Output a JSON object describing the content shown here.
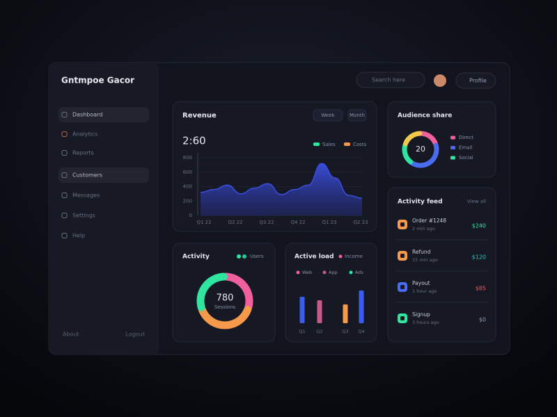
{
  "sidebar": {
    "title": "Gntmpoe Gacor",
    "items": [
      "Dashboard",
      "Analytics",
      "Reports",
      "Customers",
      "Messages",
      "Settings",
      "Help"
    ],
    "footer": [
      "About",
      "Logout"
    ]
  },
  "header": {
    "search": "Search here",
    "profile": "Profile"
  },
  "revenue": {
    "type": "area",
    "title": "Revenue",
    "buttons": [
      "Week",
      "Month"
    ],
    "total": "2:60",
    "legend": [
      {
        "name": "Sales",
        "color": "#2ee6a0"
      },
      {
        "name": "Costs",
        "color": "#f59a4a"
      }
    ],
    "color": "#3b4fe0",
    "values": [
      320,
      360,
      420,
      300,
      380,
      440,
      290,
      360,
      420,
      720,
      520,
      280,
      240
    ],
    "ylim": [
      0,
      800
    ],
    "yticks": [
      0,
      200,
      400,
      600,
      800
    ],
    "x_labels": [
      "Q1 22",
      "Q2 22",
      "Q3 22",
      "Q4 22",
      "Q1 23",
      "Q2 23"
    ]
  },
  "audience": {
    "type": "pie",
    "title": "Audience share",
    "center": "20",
    "segments": [
      {
        "name": "Direct",
        "color": "#f0609e",
        "value": 20
      },
      {
        "name": "Email",
        "color": "#4a6cf0",
        "value": 40
      },
      {
        "name": "Social",
        "color": "#2ee6a0",
        "value": 20
      },
      {
        "color": "#f2c94c",
        "value": 20
      }
    ]
  },
  "activity": {
    "type": "pie",
    "title": "Activity",
    "legend": "Users",
    "center": "780",
    "subtitle": "Sessions",
    "segments": [
      {
        "color": "#f0609e",
        "value": 30
      },
      {
        "color": "#f59a4a",
        "value": 40
      },
      {
        "color": "#2ee6a0",
        "value": 30
      }
    ]
  },
  "load": {
    "type": "bar",
    "title": "Active load",
    "legend_title": "Income",
    "legend": [
      {
        "name": "Web",
        "color": "#f0609e"
      },
      {
        "name": "App",
        "color": "#c85a8a"
      },
      {
        "name": "Ads",
        "color": "#2ee6a0"
      }
    ],
    "categories": [
      "Q1",
      "Q2",
      "Q3",
      "Q4"
    ],
    "values": [
      38,
      33,
      27,
      47
    ],
    "colors": [
      "#3b5cf0",
      "#c85a8a",
      "#f59a4a",
      "#3b5cf0"
    ],
    "ylim": [
      0,
      60
    ]
  },
  "feed": {
    "title": "Activity feed",
    "link": "View all",
    "rows": [
      {
        "title": "Order #1248",
        "subtitle": "2 min ago",
        "amount": "$240",
        "icon": "#f59a4a",
        "color": "#2ee6a0"
      },
      {
        "title": "Refund",
        "subtitle": "15 min ago",
        "amount": "$120",
        "icon": "#f59a4a",
        "color": "#29c7c7"
      },
      {
        "title": "Payout",
        "subtitle": "1 hour ago",
        "amount": "$85",
        "icon": "#4a6cf0",
        "color": "#f05a6a"
      },
      {
        "title": "Signup",
        "subtitle": "3 hours ago",
        "amount": "$0",
        "icon": "#2ee6a0",
        "color": "#9aa0b4"
      }
    ]
  }
}
